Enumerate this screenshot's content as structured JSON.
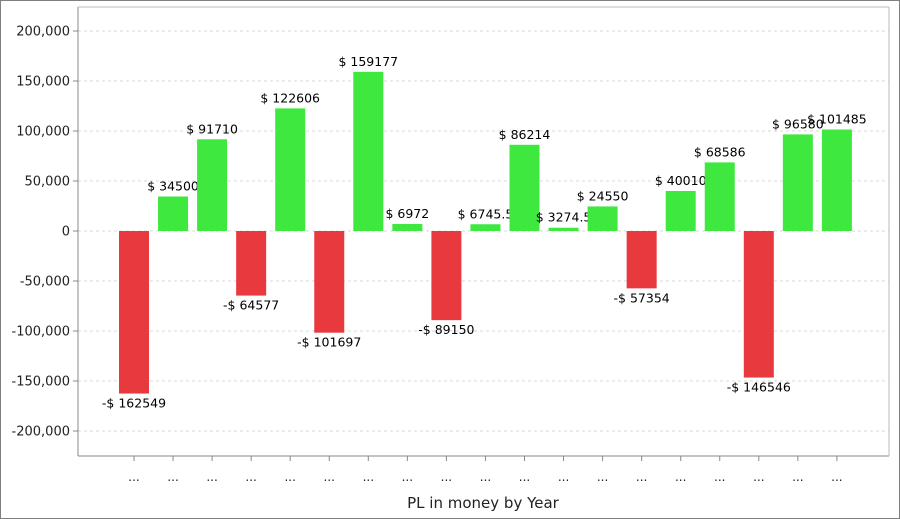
{
  "chart_data": {
    "type": "bar",
    "title": "",
    "xlabel": "PL in money by Year",
    "ylabel": "",
    "ylim": [
      -225000,
      225000
    ],
    "yticks": [
      200000,
      150000,
      100000,
      50000,
      0,
      -50000,
      -100000,
      -150000,
      -200000
    ],
    "ytick_labels": [
      "200,000",
      "150,000",
      "100,000",
      "50,000",
      "0",
      "-50,000",
      "-100,000",
      "-150,000",
      "-200,000"
    ],
    "grid": true,
    "categories": [
      "...",
      "...",
      "...",
      "...",
      "...",
      "...",
      "...",
      "...",
      "...",
      "...",
      "...",
      "...",
      "...",
      "...",
      "...",
      "...",
      "...",
      "...",
      "..."
    ],
    "values": [
      -162549,
      34500,
      91710,
      -64577,
      122606,
      -101697,
      159177,
      6972,
      -89150,
      6745.5,
      86214,
      3274.5,
      24550,
      -57354,
      40010,
      68586,
      -146546,
      96580,
      101485
    ],
    "data_labels": [
      "-$ 162549",
      "$ 34500",
      "$ 91710",
      "-$ 64577",
      "$ 122606",
      "-$ 101697",
      "$ 159177",
      "$ 6972",
      "-$ 89150",
      "$ 6745.5",
      "$ 86214",
      "$ 3274.5",
      "$ 24550",
      "-$ 57354",
      "$ 40010",
      "$ 68586",
      "-$ 146546",
      "$ 96580",
      "$ 101485"
    ],
    "colors": {
      "positive": "#3ee83e",
      "negative": "#e8393f",
      "grid": "#d9d9d9",
      "axis": "#888888"
    }
  }
}
